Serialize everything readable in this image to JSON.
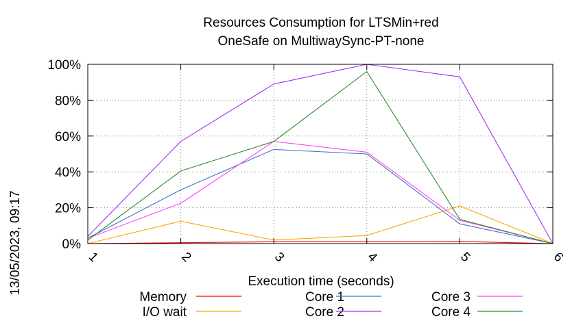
{
  "chart_data": {
    "type": "line",
    "title_lines": [
      "Resources Consumption for LTSMin+red",
      "OneSafe on MultiwaySync-PT-none"
    ],
    "xlabel": "Execution time (seconds)",
    "ylabel": "",
    "side_label": "13/05/2023, 09:17",
    "x": [
      1,
      2,
      3,
      4,
      5,
      6
    ],
    "xlim": [
      1,
      6
    ],
    "ylim": [
      0,
      100
    ],
    "x_ticks": [
      "1",
      "2",
      "3",
      "4",
      "5",
      "6"
    ],
    "y_ticks": [
      "0%",
      "20%",
      "40%",
      "60%",
      "80%",
      "100%"
    ],
    "y_tick_values": [
      0,
      20,
      40,
      60,
      80,
      100
    ],
    "grid": true,
    "legend_position": "bottom",
    "series": [
      {
        "name": "Memory",
        "color": "#ff0000",
        "values": [
          0,
          0.5,
          1,
          1,
          1.2,
          0
        ]
      },
      {
        "name": "I/O wait",
        "color": "#ffa500",
        "values": [
          0,
          12.5,
          2,
          4.5,
          21,
          0
        ]
      },
      {
        "name": "Core 1",
        "color": "#4472c4",
        "values": [
          3,
          30,
          52.5,
          50,
          11,
          0
        ]
      },
      {
        "name": "Core 2",
        "color": "#a030f0",
        "values": [
          4,
          57,
          89,
          100,
          93,
          0
        ]
      },
      {
        "name": "Core 3",
        "color": "#ff40ff",
        "values": [
          3,
          22.5,
          57,
          51,
          13,
          0
        ]
      },
      {
        "name": "Core 4",
        "color": "#2e8b2e",
        "values": [
          2,
          40.5,
          57,
          96,
          13.5,
          0
        ]
      }
    ]
  }
}
